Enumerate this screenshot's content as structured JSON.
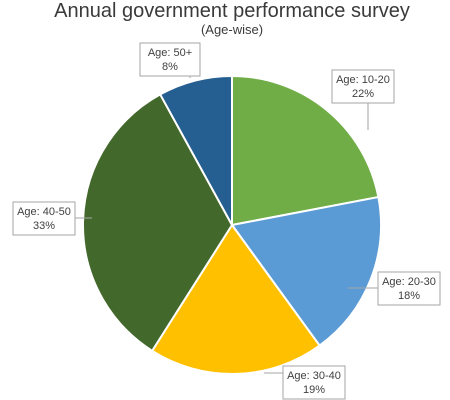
{
  "chart_data": {
    "type": "pie",
    "title": "Annual government performance survey",
    "subtitle": "(Age-wise)",
    "start_angle_deg": 0,
    "direction": "clockwise",
    "legend": "none",
    "slices": [
      {
        "label": "Age: 10-20",
        "value": 22,
        "value_label": "22%",
        "color": "#70ad47"
      },
      {
        "label": "Age: 20-30",
        "value": 18,
        "value_label": "18%",
        "color": "#5b9bd5"
      },
      {
        "label": "Age: 30-40",
        "value": 19,
        "value_label": "19%",
        "color": "#ffc000"
      },
      {
        "label": "Age: 40-50",
        "value": 33,
        "value_label": "33%",
        "color": "#43682b"
      },
      {
        "label": "Age: 50+",
        "value": 8,
        "value_label": "8%",
        "color": "#255e91"
      }
    ]
  }
}
